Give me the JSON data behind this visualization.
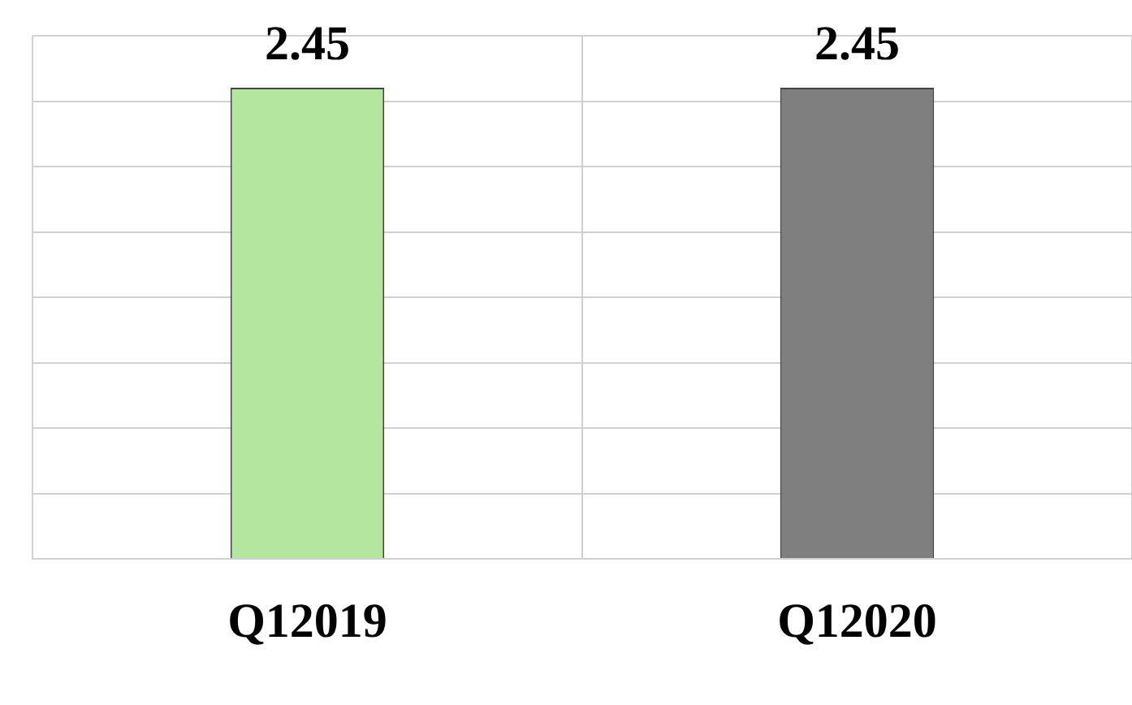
{
  "chart_data": {
    "type": "bar",
    "categories": [
      "Q12019",
      "Q12020"
    ],
    "values": [
      2.45,
      2.45
    ],
    "colors": [
      "#b5e6a0",
      "#7f7f7f"
    ],
    "data_labels": true,
    "ylim": [
      0,
      2.72
    ],
    "yticks": [
      {
        "value": 0,
        "label": null
      },
      {
        "value": 0.34,
        "label": null
      },
      {
        "value": 0.68,
        "label": null
      },
      {
        "value": 1.02,
        "label": null
      },
      {
        "value": 1.36,
        "label": null
      },
      {
        "value": 1.7,
        "label": null
      },
      {
        "value": 2.04,
        "label": null
      },
      {
        "value": 2.38,
        "label": null
      },
      {
        "value": 2.72,
        "label": null
      }
    ],
    "tick_labels": "x",
    "grid": true
  }
}
